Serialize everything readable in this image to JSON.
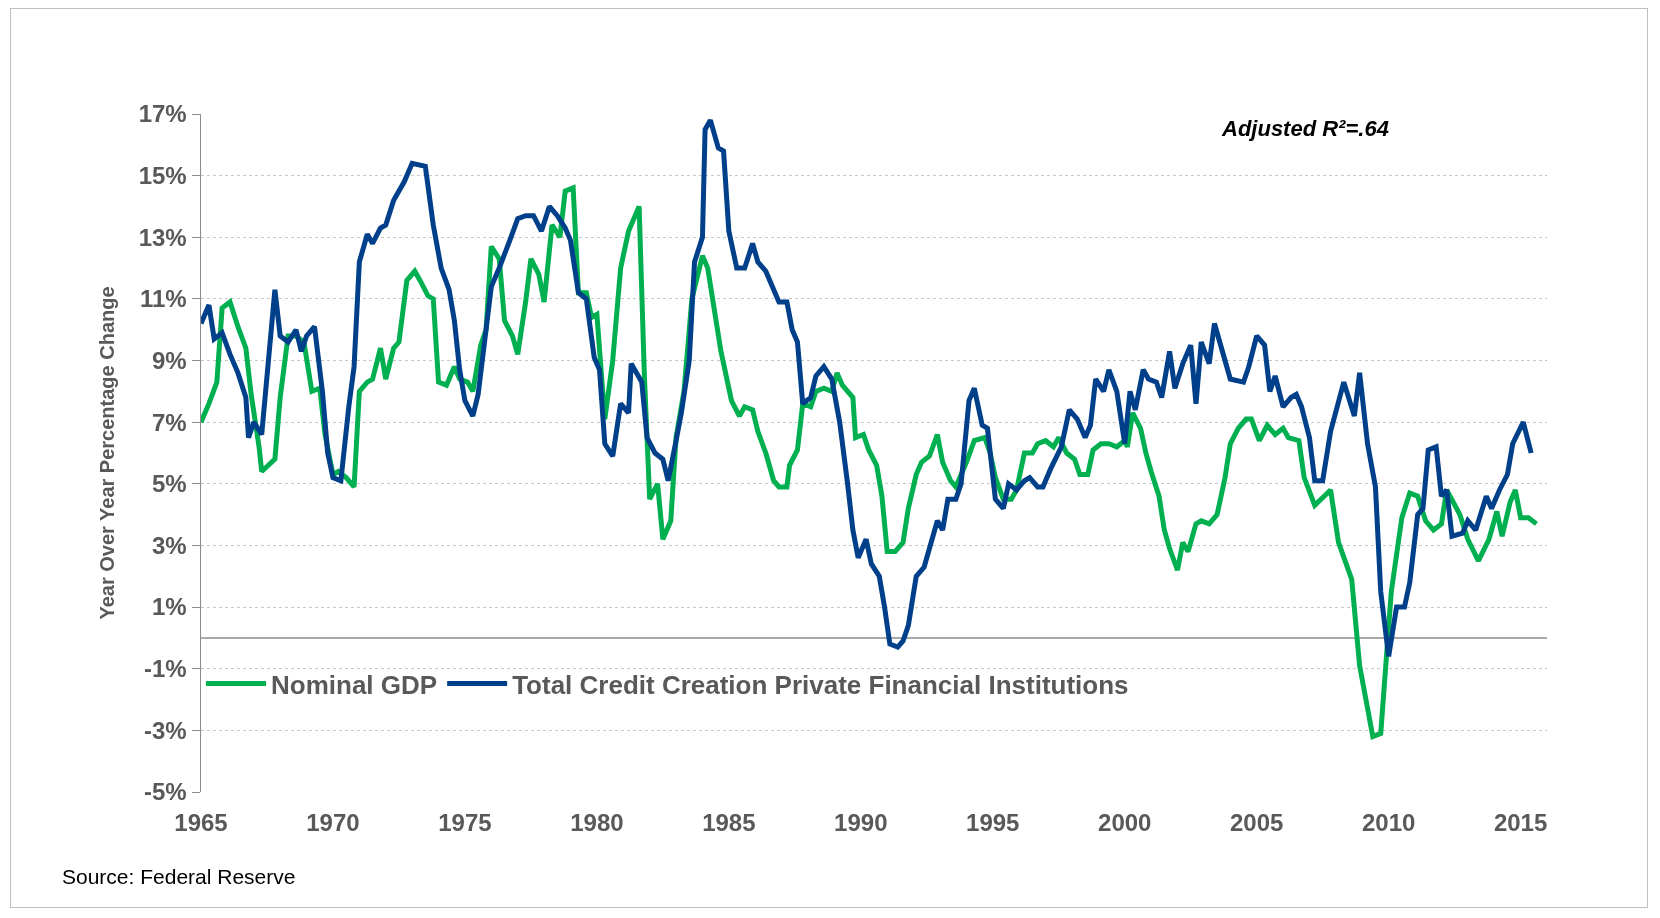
{
  "chart_data": {
    "type": "line",
    "ylabel": "Year Over Year Percentage Change",
    "xlim": [
      1965,
      2016
    ],
    "xticks": [
      1965,
      1970,
      1975,
      1980,
      1985,
      1990,
      1995,
      2000,
      2005,
      2010,
      2015
    ],
    "ylim": [
      -5,
      17
    ],
    "yticks": [
      {
        "value": -5,
        "label": "-5%"
      },
      {
        "value": -3,
        "label": "-3%"
      },
      {
        "value": -1,
        "label": "-1%"
      },
      {
        "value": 1,
        "label": "1%"
      },
      {
        "value": 3,
        "label": "3%"
      },
      {
        "value": 5,
        "label": "5%"
      },
      {
        "value": 7,
        "label": "7%"
      },
      {
        "value": 9,
        "label": "9%"
      },
      {
        "value": 11,
        "label": "11%"
      },
      {
        "value": 13,
        "label": "13%"
      },
      {
        "value": 15,
        "label": "15%"
      },
      {
        "value": 17,
        "label": "17%"
      }
    ],
    "grid": "y",
    "legend": "bottom left",
    "line_style": "solid",
    "marker": "none",
    "ref_lines": [
      {
        "axis": "y",
        "value": 0,
        "label": null,
        "color": "#8c8c8c"
      }
    ],
    "annotations": [
      "Adjusted R²=.64",
      "Source: Federal Reserve"
    ],
    "series": [
      {
        "name": "Nominal GDP",
        "color": "#00b050",
        "x": [
          1965.0,
          1965.3,
          1965.6,
          1965.8,
          1966.1,
          1966.4,
          1966.7,
          1966.9,
          1967.2,
          1967.3,
          1967.8,
          1968.0,
          1968.3,
          1968.6,
          1968.9,
          1969.2,
          1969.5,
          1969.7,
          1970.0,
          1970.2,
          1970.5,
          1970.8,
          1971.0,
          1971.3,
          1971.5,
          1971.8,
          1972.0,
          1972.3,
          1972.5,
          1972.8,
          1973.1,
          1973.3,
          1973.6,
          1973.8,
          1974.0,
          1974.3,
          1974.6,
          1974.8,
          1975.1,
          1975.3,
          1975.6,
          1975.8,
          1976.0,
          1976.3,
          1976.5,
          1976.8,
          1977.0,
          1977.3,
          1977.5,
          1977.8,
          1978.0,
          1978.3,
          1978.6,
          1978.8,
          1979.1,
          1979.3,
          1979.6,
          1979.8,
          1980.0,
          1980.3,
          1980.6,
          1980.9,
          1981.2,
          1981.6,
          1981.8,
          1982.0,
          1982.3,
          1982.5,
          1982.8,
          1983.0,
          1983.3,
          1983.6,
          1984.0,
          1984.2,
          1984.7,
          1985.1,
          1985.4,
          1985.6,
          1985.9,
          1986.1,
          1986.4,
          1986.7,
          1986.9,
          1987.2,
          1987.3,
          1987.6,
          1987.8,
          1988.1,
          1988.3,
          1988.6,
          1988.9,
          1989.1,
          1989.3,
          1989.7,
          1989.8,
          1990.1,
          1990.3,
          1990.6,
          1990.8,
          1991.0,
          1991.3,
          1991.6,
          1991.8,
          1992.1,
          1992.3,
          1992.6,
          1992.9,
          1993.1,
          1993.4,
          1993.6,
          1994.0,
          1994.3,
          1994.7,
          1994.9,
          1995.1,
          1995.4,
          1995.7,
          1995.9,
          1996.2,
          1996.5,
          1996.7,
          1997.0,
          1997.3,
          1997.5,
          1997.8,
          1998.1,
          1998.3,
          1998.6,
          1998.8,
          1999.1,
          1999.4,
          1999.7,
          2000.0,
          2000.1,
          2000.3,
          2000.6,
          2000.8,
          2001.0,
          2001.3,
          2001.5,
          2001.7,
          2002.0,
          2002.2,
          2002.4,
          2002.7,
          2002.9,
          2003.2,
          2003.5,
          2003.8,
          2004.0,
          2004.3,
          2004.6,
          2004.8,
          2005.1,
          2005.4,
          2005.7,
          2006.0,
          2006.2,
          2006.6,
          2006.8,
          2007.2,
          2007.8,
          2008.1,
          2008.6,
          2008.9,
          2009.4,
          2009.7,
          2010.1,
          2010.5,
          2010.8,
          2011.1,
          2011.4,
          2011.7,
          2012.0,
          2012.2,
          2012.7,
          2013.0,
          2013.4,
          2013.8,
          2014.1,
          2014.3,
          2014.6,
          2014.8,
          2015.0,
          2015.3,
          2015.6
        ],
        "values": [
          7.0,
          7.6,
          8.3,
          10.7,
          10.9,
          10.1,
          9.4,
          7.9,
          6.2,
          5.4,
          5.8,
          7.8,
          9.8,
          9.8,
          9.6,
          8.0,
          8.1,
          6.6,
          5.3,
          5.4,
          5.2,
          4.9,
          8.0,
          8.3,
          8.4,
          9.4,
          8.4,
          9.4,
          9.6,
          11.6,
          11.9,
          11.6,
          11.1,
          11.0,
          8.3,
          8.2,
          8.8,
          8.4,
          8.3,
          8.0,
          9.5,
          10.0,
          12.7,
          12.3,
          10.3,
          9.8,
          9.2,
          10.9,
          12.3,
          11.8,
          10.9,
          13.4,
          13.0,
          14.5,
          14.6,
          11.2,
          11.2,
          10.4,
          10.5,
          7.1,
          9.0,
          12.0,
          13.2,
          14.0,
          8.5,
          4.5,
          5.0,
          3.2,
          3.8,
          6.5,
          8.0,
          11.0,
          12.4,
          12.0,
          9.3,
          7.7,
          7.2,
          7.5,
          7.4,
          6.7,
          6.0,
          5.1,
          4.9,
          4.9,
          5.6,
          6.1,
          7.6,
          7.5,
          8.0,
          8.1,
          8.0,
          8.6,
          8.2,
          7.8,
          6.5,
          6.6,
          6.1,
          5.6,
          4.6,
          2.8,
          2.8,
          3.1,
          4.2,
          5.3,
          5.7,
          5.9,
          6.6,
          5.7,
          5.1,
          4.9,
          5.7,
          6.4,
          6.5,
          6.0,
          5.2,
          4.5,
          4.5,
          4.8,
          6.0,
          6.0,
          6.3,
          6.4,
          6.2,
          6.5,
          6.0,
          5.8,
          5.3,
          5.3,
          6.1,
          6.3,
          6.3,
          6.2,
          6.4,
          6.2,
          7.3,
          6.8,
          6.0,
          5.4,
          4.6,
          3.5,
          2.9,
          2.2,
          3.1,
          2.8,
          3.7,
          3.8,
          3.7,
          4.0,
          5.2,
          6.3,
          6.8,
          7.1,
          7.1,
          6.4,
          6.9,
          6.6,
          6.8,
          6.5,
          6.4,
          5.2,
          4.3,
          4.8,
          3.1,
          1.9,
          -0.9,
          -3.2,
          -3.1,
          1.5,
          3.9,
          4.7,
          4.6,
          3.8,
          3.5,
          3.7,
          4.8,
          4.0,
          3.2,
          2.5,
          3.2,
          4.1,
          3.3,
          4.4,
          4.8,
          3.9,
          3.9,
          3.7
        ]
      },
      {
        "name": "Total Credit Creation Private Financial Institutions",
        "color": "#003f8a",
        "x": [
          1965.0,
          1965.3,
          1965.5,
          1965.8,
          1966.1,
          1966.4,
          1966.7,
          1966.8,
          1967.0,
          1967.3,
          1967.8,
          1968.0,
          1968.3,
          1968.6,
          1968.8,
          1969.0,
          1969.3,
          1969.6,
          1969.8,
          1970.0,
          1970.3,
          1970.6,
          1970.8,
          1971.0,
          1971.3,
          1971.5,
          1971.8,
          1972.0,
          1972.3,
          1972.7,
          1973.0,
          1973.5,
          1973.8,
          1974.1,
          1974.4,
          1974.6,
          1974.8,
          1975.0,
          1975.3,
          1975.5,
          1975.8,
          1976.0,
          1976.3,
          1976.7,
          1977.0,
          1977.3,
          1977.6,
          1977.9,
          1978.2,
          1978.5,
          1978.8,
          1979.0,
          1979.3,
          1979.6,
          1979.9,
          1980.1,
          1980.3,
          1980.6,
          1980.9,
          1981.2,
          1981.3,
          1981.7,
          1981.9,
          1982.2,
          1982.5,
          1982.7,
          1983.0,
          1983.2,
          1983.5,
          1983.7,
          1984.0,
          1984.1,
          1984.3,
          1984.6,
          1984.8,
          1985.0,
          1985.3,
          1985.6,
          1985.9,
          1986.1,
          1986.4,
          1986.7,
          1986.9,
          1987.2,
          1987.4,
          1987.6,
          1987.8,
          1988.1,
          1988.3,
          1988.6,
          1988.9,
          1989.2,
          1989.5,
          1989.7,
          1989.9,
          1990.2,
          1990.4,
          1990.7,
          1990.9,
          1991.1,
          1991.4,
          1991.6,
          1991.8,
          1992.1,
          1992.4,
          1992.7,
          1992.9,
          1993.1,
          1993.3,
          1993.6,
          1993.8,
          1994.1,
          1994.3,
          1994.6,
          1994.8,
          1995.1,
          1995.4,
          1995.6,
          1995.9,
          1996.2,
          1996.4,
          1996.7,
          1996.9,
          1997.2,
          1997.6,
          1997.9,
          1998.2,
          1998.5,
          1998.7,
          1998.9,
          1999.2,
          1999.4,
          1999.7,
          2000.0,
          2000.2,
          2000.4,
          2000.7,
          2000.9,
          2001.2,
          2001.4,
          2001.7,
          2001.9,
          2002.2,
          2002.5,
          2002.7,
          2002.9,
          2003.2,
          2003.4,
          2004.0,
          2004.5,
          2004.7,
          2005.0,
          2005.3,
          2005.5,
          2005.7,
          2006.0,
          2006.3,
          2006.5,
          2006.7,
          2007.0,
          2007.2,
          2007.5,
          2007.8,
          2008.3,
          2008.7,
          2008.9,
          2009.2,
          2009.5,
          2009.7,
          2010.0,
          2010.3,
          2010.6,
          2010.8,
          2011.1,
          2011.3,
          2011.5,
          2011.8,
          2012.0,
          2012.2,
          2012.4,
          2012.8,
          2013.0,
          2013.3,
          2013.7,
          2013.9,
          2014.2,
          2014.5,
          2014.7,
          2015.1,
          2015.4
        ],
        "values": [
          10.2,
          10.8,
          9.7,
          9.9,
          9.2,
          8.6,
          7.8,
          6.5,
          7.0,
          6.6,
          11.3,
          9.8,
          9.6,
          10.0,
          9.3,
          9.8,
          10.1,
          8.0,
          6.0,
          5.2,
          5.1,
          7.5,
          8.8,
          12.2,
          13.1,
          12.8,
          13.3,
          13.4,
          14.2,
          14.8,
          15.4,
          15.3,
          13.4,
          12.0,
          11.3,
          10.3,
          8.7,
          7.7,
          7.2,
          7.9,
          10.0,
          11.4,
          12.0,
          12.9,
          13.6,
          13.7,
          13.7,
          13.2,
          14.0,
          13.7,
          13.3,
          12.9,
          11.2,
          11.0,
          9.1,
          8.7,
          6.3,
          5.9,
          7.6,
          7.3,
          8.9,
          8.3,
          6.5,
          6.0,
          5.8,
          5.1,
          6.4,
          7.3,
          9.0,
          12.2,
          13.0,
          16.5,
          16.8,
          15.9,
          15.8,
          13.2,
          12.0,
          12.0,
          12.8,
          12.2,
          11.9,
          11.3,
          10.9,
          10.9,
          10.0,
          9.6,
          7.6,
          7.8,
          8.5,
          8.8,
          8.4,
          7.0,
          5.0,
          3.5,
          2.6,
          3.2,
          2.4,
          2.0,
          1.0,
          -0.2,
          -0.3,
          -0.1,
          0.4,
          2.0,
          2.3,
          3.2,
          3.8,
          3.5,
          4.5,
          4.5,
          5.0,
          7.7,
          8.1,
          6.9,
          6.8,
          4.5,
          4.2,
          5.0,
          4.8,
          5.1,
          5.2,
          4.9,
          4.9,
          5.5,
          6.2,
          7.4,
          7.1,
          6.5,
          6.9,
          8.4,
          8.0,
          8.7,
          8.0,
          6.3,
          8.0,
          7.4,
          8.7,
          8.4,
          8.3,
          7.8,
          9.3,
          8.1,
          8.9,
          9.5,
          7.6,
          9.6,
          8.9,
          10.2,
          8.4,
          8.3,
          8.8,
          9.8,
          9.5,
          8.0,
          8.5,
          7.5,
          7.8,
          7.9,
          7.5,
          6.5,
          5.1,
          5.1,
          6.7,
          8.3,
          7.2,
          8.6,
          6.3,
          4.9,
          1.5,
          -0.6,
          1.0,
          1.0,
          1.8,
          4.0,
          4.2,
          6.1,
          6.2,
          4.6,
          4.8,
          3.3,
          3.4,
          3.8,
          3.5,
          4.6,
          4.2,
          4.8,
          5.3,
          6.3,
          7.0,
          6.0
        ]
      }
    ]
  }
}
